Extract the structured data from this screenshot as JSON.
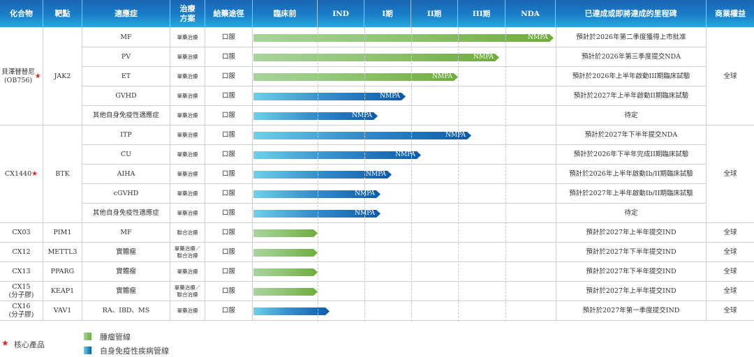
{
  "header": {
    "compound": "化合物",
    "target": "靶點",
    "indication": "適應症",
    "regimen": "治療\n方案",
    "route": "給藥途徑",
    "preclinical": "臨床前",
    "ind": "IND",
    "phase1": "I期",
    "phase2": "II期",
    "phase3": "III期",
    "nda": "NDA",
    "milestone": "已達成或即將達成的里程碑",
    "rights": "商業權益"
  },
  "groups": [
    {
      "compound": "貝澤替替尼\n(OB756)",
      "core": true,
      "target": "JAK2",
      "rights": "全球"
    },
    {
      "compound": "CX1440",
      "core": true,
      "target": "BTK",
      "rights": "全球"
    },
    {
      "compound": "CX03",
      "core": false,
      "target": "PIM1",
      "rights": "全球"
    },
    {
      "compound": "CX12",
      "core": false,
      "target": "METTL3",
      "rights": "全球"
    },
    {
      "compound": "CX13",
      "core": false,
      "target": "PPARG",
      "rights": "全球"
    },
    {
      "compound": "CX15\n(分子膠)",
      "core": false,
      "target": "KEAP1",
      "rights": "全球"
    },
    {
      "compound": "CX16\n(分子膠)",
      "core": false,
      "target": "VAV1",
      "rights": "全球"
    }
  ],
  "rows": [
    {
      "indication": "MF",
      "regimen": "單藥治療",
      "route": "口服",
      "pipeline": "oncology",
      "bar_end": 793,
      "bar_label": "NMPA",
      "milestone": "預計於2026年第二季度獲得上市批准"
    },
    {
      "indication": "PV",
      "regimen": "單藥治療",
      "route": "口服",
      "pipeline": "oncology",
      "bar_end": 715,
      "bar_label": "NMPA",
      "milestone": "預計於2026年第三季度提交NDA"
    },
    {
      "indication": "ET",
      "regimen": "單藥治療",
      "route": "口服",
      "pipeline": "oncology",
      "bar_end": 656,
      "bar_label": "NMPA",
      "milestone": "預計於2026年上半年啟動III期臨床試驗"
    },
    {
      "indication": "GVHD",
      "regimen": "單藥治療",
      "route": "口服",
      "pipeline": "autoimmune",
      "bar_end": 581,
      "bar_label": "NMPA",
      "milestone": "預計於2027年上半年啟動II期臨床試驗"
    },
    {
      "indication": "其他自身免疫性適應症",
      "regimen": "單藥治療",
      "route": "口服",
      "pipeline": "autoimmune",
      "bar_end": 541,
      "bar_label": "NMPA",
      "milestone": "待定"
    },
    {
      "indication": "ITP",
      "regimen": "單藥治療",
      "route": "口服",
      "pipeline": "autoimmune",
      "bar_end": 675,
      "bar_label": "NMPA",
      "milestone": "預計於2027年下半年提交NDA"
    },
    {
      "indication": "CU",
      "regimen": "單藥治療",
      "route": "口服",
      "pipeline": "autoimmune",
      "bar_end": 603,
      "bar_label": "NMPA",
      "milestone": "預計於2026年下半年完成II期臨床試驗"
    },
    {
      "indication": "AIHA",
      "regimen": "單藥治療",
      "route": "口服",
      "pipeline": "autoimmune",
      "bar_end": 561,
      "bar_label": "NMPA",
      "milestone": "預計於2026年上半年啟動Ib/II期臨床試驗"
    },
    {
      "indication": "cGVHD",
      "regimen": "單藥治療",
      "route": "口服",
      "pipeline": "autoimmune",
      "bar_end": 545,
      "bar_label": "NMPA",
      "milestone": "預計於2027年上半年啟動Ib/II期臨床試驗"
    },
    {
      "indication": "其他自身免疫性適應症",
      "regimen": "單藥治療",
      "route": "口服",
      "pipeline": "autoimmune",
      "bar_end": 545,
      "bar_label": "NMPA",
      "milestone": "待定"
    },
    {
      "indication": "MF",
      "regimen": "聯合治療",
      "route": "口服",
      "pipeline": "oncology",
      "bar_end": 455,
      "bar_label": "",
      "milestone": "預計於2027年上半年提交IND"
    },
    {
      "indication": "實體瘤",
      "regimen": "單藥治療／\n聯合治療",
      "route": "口服",
      "pipeline": "oncology",
      "bar_end": 455,
      "bar_label": "",
      "milestone": "預計於2027年下半年提交IND"
    },
    {
      "indication": "實體瘤",
      "regimen": "單藥治療",
      "route": "口服",
      "pipeline": "oncology",
      "bar_end": 455,
      "bar_label": "",
      "milestone": "預計於2027年下半年提交IND"
    },
    {
      "indication": "實體瘤",
      "regimen": "單藥治療／\n聯合治療",
      "route": "口服",
      "pipeline": "oncology",
      "bar_end": 455,
      "bar_label": "",
      "milestone": "預計於2027年上半年提交IND"
    },
    {
      "indication": "RA、IBD、MS",
      "regimen": "單藥治療",
      "route": "口服",
      "pipeline": "autoimmune",
      "bar_end": 472,
      "bar_label": "",
      "milestone": "預計於2027年第一季度提交IND"
    }
  ],
  "legend": {
    "core_star": "★",
    "core_label": "核心產品",
    "oncology_label": "腫瘤管線",
    "autoimmune_label": "自身免疫性疾病管線"
  },
  "colors": {
    "header_blue": "#1a7fc8",
    "oncology_green": "#6fac3c",
    "autoimmune_blue": "#0c5aa8",
    "star_red": "#d8262d"
  }
}
